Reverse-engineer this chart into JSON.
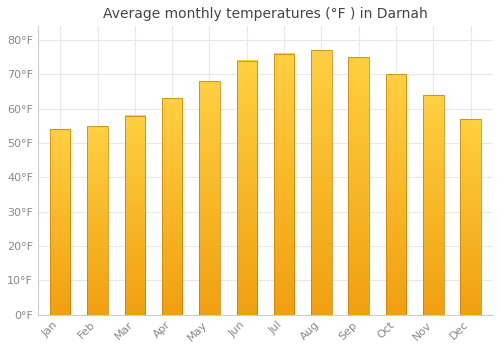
{
  "title": "Average monthly temperatures (°F ) in Darnah",
  "months": [
    "Jan",
    "Feb",
    "Mar",
    "Apr",
    "May",
    "Jun",
    "Jul",
    "Aug",
    "Sep",
    "Oct",
    "Nov",
    "Dec"
  ],
  "values": [
    54,
    55,
    58,
    63,
    68,
    74,
    76,
    77,
    75,
    70,
    64,
    57
  ],
  "bar_color_top": "#FFD040",
  "bar_color_bottom": "#F0A010",
  "bar_edge_color": "#C87800",
  "background_color": "#FFFFFF",
  "plot_bg_color": "#FFFFFF",
  "grid_color": "#E8E8E8",
  "yticks": [
    0,
    10,
    20,
    30,
    40,
    50,
    60,
    70,
    80
  ],
  "ylim": [
    0,
    84
  ],
  "title_fontsize": 10,
  "tick_fontsize": 8,
  "tick_color": "#888888",
  "title_color": "#444444"
}
